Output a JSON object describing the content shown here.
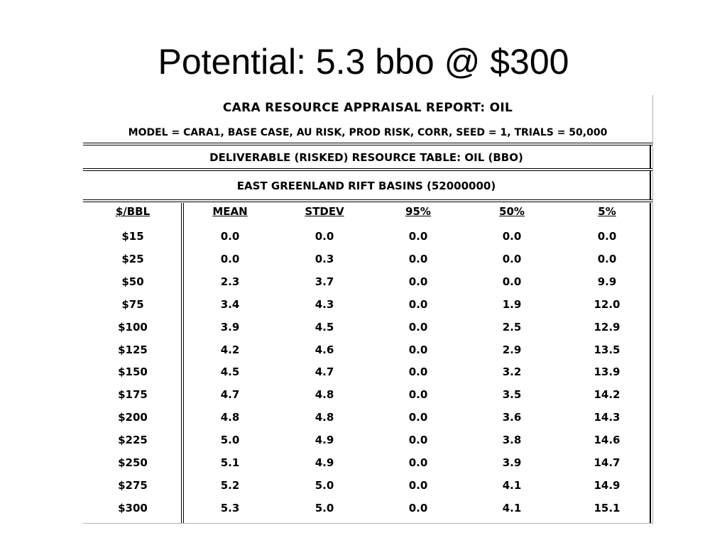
{
  "slide": {
    "title": "Potential: 5.3 bbo @ $300"
  },
  "report": {
    "title": "CARA RESOURCE APPRAISAL REPORT: OIL",
    "model": "MODEL = CARA1, BASE CASE, AU RISK, PROD RISK, CORR, SEED = 1, TRIALS = 50,000",
    "table_title": "DELIVERABLE (RISKED) RESOURCE TABLE: OIL (BBO)",
    "region": "EAST GREENLAND RIFT BASINS (52000000)",
    "columns": [
      "$/BBL",
      "MEAN",
      "STDEV",
      "95%",
      "50%",
      "5%"
    ],
    "rows": [
      [
        "$15",
        "0.0",
        "0.0",
        "0.0",
        "0.0",
        "0.0"
      ],
      [
        "$25",
        "0.0",
        "0.3",
        "0.0",
        "0.0",
        "0.0"
      ],
      [
        "$50",
        "2.3",
        "3.7",
        "0.0",
        "0.0",
        "9.9"
      ],
      [
        "$75",
        "3.4",
        "4.3",
        "0.0",
        "1.9",
        "12.0"
      ],
      [
        "$100",
        "3.9",
        "4.5",
        "0.0",
        "2.5",
        "12.9"
      ],
      [
        "$125",
        "4.2",
        "4.6",
        "0.0",
        "2.9",
        "13.5"
      ],
      [
        "$150",
        "4.5",
        "4.7",
        "0.0",
        "3.2",
        "13.9"
      ],
      [
        "$175",
        "4.7",
        "4.8",
        "0.0",
        "3.5",
        "14.2"
      ],
      [
        "$200",
        "4.8",
        "4.8",
        "0.0",
        "3.6",
        "14.3"
      ],
      [
        "$225",
        "5.0",
        "4.9",
        "0.0",
        "3.8",
        "14.6"
      ],
      [
        "$250",
        "5.1",
        "4.9",
        "0.0",
        "3.9",
        "14.7"
      ],
      [
        "$275",
        "5.2",
        "5.0",
        "0.0",
        "4.1",
        "14.9"
      ],
      [
        "$300",
        "5.3",
        "5.0",
        "0.0",
        "4.1",
        "15.1"
      ]
    ]
  }
}
